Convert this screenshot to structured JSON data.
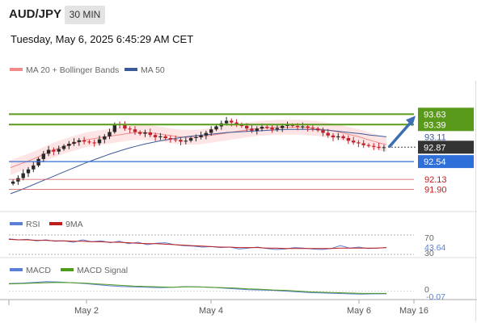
{
  "header": {
    "symbol": "AUD/JPY",
    "timeframe": "30 MIN",
    "timestamp": "Tuesday, May 6, 2025 6:45:29 AM CET"
  },
  "colors": {
    "up_candle": "#2a2a2a",
    "down_candle": "#c0202a",
    "bollinger_fill": "#fde0e0",
    "ma20": "#f28b8b",
    "ma50": "#3d5a98",
    "resistance": "#5a9a1a",
    "support": "#2e6fd9",
    "support_minor": "#d05050",
    "arrow": "#3d6fb0",
    "rsi": "#5b7fd4",
    "rsi_ma": "#c01c1c",
    "macd": "#5b7fd4",
    "macd_signal": "#4e9a1a"
  },
  "chart_data": [
    {
      "type": "candlestick",
      "name": "price",
      "legend": [
        {
          "label": "MA 20 + Bollinger Bands",
          "color": "#f28b8b"
        },
        {
          "label": "MA 50",
          "color": "#3d5a98"
        }
      ],
      "x_ticks": [
        "May 2",
        "May 4",
        "May 6",
        "May 16"
      ],
      "ylim": [
        91.5,
        94.4
      ],
      "current_price": 92.87,
      "levels": [
        {
          "value": 93.63,
          "label": "93.63",
          "role": "resistance"
        },
        {
          "value": 93.39,
          "label": "93.39",
          "role": "resistance"
        },
        {
          "value": 93.11,
          "label": "93.11",
          "role": "ma50"
        },
        {
          "value": 92.54,
          "label": "92.54",
          "role": "support"
        },
        {
          "value": 92.13,
          "label": "92.13",
          "role": "support_minor"
        },
        {
          "value": 91.9,
          "label": "91.90",
          "role": "support_minor"
        }
      ],
      "close": [
        92.08,
        92.16,
        92.27,
        92.36,
        92.45,
        92.6,
        92.72,
        92.81,
        92.77,
        92.83,
        92.9,
        92.95,
        92.99,
        93.03,
        93.0,
        92.98,
        92.96,
        93.05,
        93.12,
        93.22,
        93.4,
        93.38,
        93.3,
        93.28,
        93.22,
        93.18,
        93.21,
        93.15,
        93.1,
        93.12,
        93.08,
        93.05,
        93.04,
        93.0,
        93.02,
        93.08,
        93.1,
        93.14,
        93.2,
        93.28,
        93.35,
        93.42,
        93.48,
        93.44,
        93.4,
        93.36,
        93.3,
        93.25,
        93.3,
        93.34,
        93.32,
        93.28,
        93.31,
        93.36,
        93.38,
        93.36,
        93.34,
        93.35,
        93.32,
        93.3,
        93.26,
        93.2,
        93.14,
        93.1,
        93.12,
        93.08,
        93.02,
        92.98,
        92.96,
        92.92,
        92.9,
        92.88,
        92.86,
        92.87
      ],
      "ma20": [
        92.4,
        92.45,
        92.5,
        92.55,
        92.6,
        92.66,
        92.72,
        92.78,
        92.83,
        92.88,
        92.92,
        92.96,
        93.0,
        93.04,
        93.06,
        93.08,
        93.1,
        93.12,
        93.14,
        93.16,
        93.18,
        93.2,
        93.21,
        93.21,
        93.2,
        93.19,
        93.17,
        93.15,
        93.13,
        93.11,
        93.1,
        93.1,
        93.1,
        93.11,
        93.13,
        93.15,
        93.17,
        93.19,
        93.21,
        93.23,
        93.25,
        93.27,
        93.29,
        93.3,
        93.31,
        93.32,
        93.33,
        93.33,
        93.33,
        93.33,
        93.33,
        93.32,
        93.31,
        93.3,
        93.28,
        93.26,
        93.24,
        93.21,
        93.18,
        93.15,
        93.12,
        93.08,
        93.04,
        93.0,
        92.96,
        92.93
      ],
      "ma50": [
        91.8,
        91.87,
        91.95,
        92.03,
        92.11,
        92.19,
        92.27,
        92.35,
        92.43,
        92.51,
        92.58,
        92.65,
        92.72,
        92.78,
        92.84,
        92.89,
        92.94,
        92.98,
        93.02,
        93.05,
        93.08,
        93.11,
        93.13,
        93.15,
        93.17,
        93.19,
        93.21,
        93.22,
        93.23,
        93.24,
        93.25,
        93.26,
        93.27,
        93.28,
        93.28,
        93.28,
        93.28,
        93.27,
        93.26,
        93.24,
        93.22,
        93.2,
        93.18,
        93.15,
        93.13,
        93.11
      ]
    },
    {
      "type": "line",
      "name": "RSI",
      "legend": [
        {
          "label": "RSI",
          "color": "#5b7fd4"
        },
        {
          "label": "9MA",
          "color": "#c01c1c"
        }
      ],
      "ylim": [
        25,
        80
      ],
      "ticks": [
        "70",
        "30"
      ],
      "current_label": "43.64",
      "series": [
        {
          "name": "RSI",
          "values": [
            62,
            60,
            61,
            58,
            60,
            57,
            58,
            55,
            60,
            56,
            58,
            54,
            57,
            52,
            55,
            50,
            53,
            54,
            50,
            48,
            47,
            45,
            46,
            44,
            45,
            41,
            43,
            45,
            42,
            40,
            41,
            44,
            43,
            41,
            40,
            42,
            48,
            43,
            45,
            42,
            43,
            44
          ]
        },
        {
          "name": "9MA",
          "values": [
            61,
            60,
            60,
            59,
            59,
            58,
            58,
            57,
            57,
            56,
            56,
            55,
            55,
            54,
            53,
            52,
            52,
            51,
            50,
            49,
            48,
            47,
            46,
            45,
            45,
            44,
            44,
            44,
            43,
            43,
            42,
            42,
            42,
            42,
            42,
            42,
            43,
            43,
            43,
            43,
            43,
            44
          ]
        }
      ]
    },
    {
      "type": "line",
      "name": "MACD",
      "legend": [
        {
          "label": "MACD",
          "color": "#5b7fd4"
        },
        {
          "label": "MACD Signal",
          "color": "#4e9a1a"
        }
      ],
      "ylim": [
        -0.2,
        0.35
      ],
      "ticks": [
        "0"
      ],
      "current_label": "-0.07",
      "series": [
        {
          "name": "MACD",
          "values": [
            0.2,
            0.21,
            0.23,
            0.25,
            0.24,
            0.22,
            0.2,
            0.17,
            0.14,
            0.12,
            0.11,
            0.1,
            0.09,
            0.1,
            0.12,
            0.11,
            0.1,
            0.08,
            0.06,
            0.04,
            0.03,
            0.02,
            0.0,
            -0.02,
            -0.04,
            -0.05,
            -0.06,
            -0.07,
            -0.08,
            -0.07,
            -0.07
          ]
        },
        {
          "name": "MACD Signal",
          "values": [
            0.19,
            0.2,
            0.21,
            0.22,
            0.23,
            0.22,
            0.21,
            0.19,
            0.17,
            0.15,
            0.13,
            0.12,
            0.11,
            0.1,
            0.11,
            0.11,
            0.1,
            0.09,
            0.08,
            0.06,
            0.05,
            0.03,
            0.02,
            0.0,
            -0.02,
            -0.03,
            -0.04,
            -0.05,
            -0.06,
            -0.06,
            -0.06
          ]
        }
      ]
    }
  ]
}
